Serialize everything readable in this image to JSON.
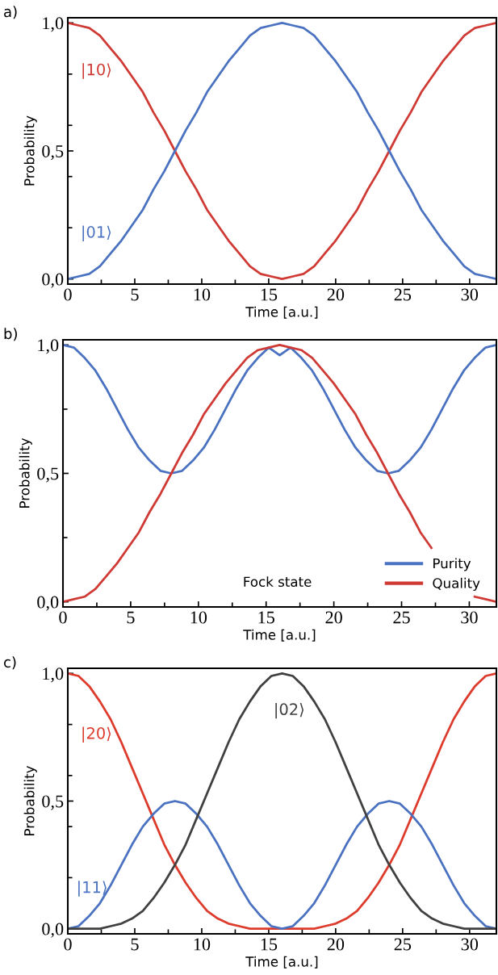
{
  "chart_data": [
    {
      "type": "line",
      "title": "a)",
      "xlabel": "Time [a.u.]",
      "ylabel": "Probability",
      "legend": false,
      "grid": false,
      "xlim": [
        0,
        32
      ],
      "ylim": [
        -0.02,
        1.02
      ],
      "xticks": [
        0,
        {
          "value": 2.5,
          "label": null
        },
        5,
        {
          "value": 7.5,
          "label": null
        },
        10,
        {
          "value": 12.5,
          "label": null
        },
        15,
        {
          "value": 17.5,
          "label": null
        },
        20,
        {
          "value": 22.5,
          "label": null
        },
        25,
        {
          "value": 27.5,
          "label": null
        },
        30
      ],
      "yticks": [
        {
          "value": 0,
          "label": "0,0"
        },
        {
          "value": 0.2,
          "label": null
        },
        {
          "value": 0.4,
          "label": null
        },
        {
          "value": 0.5,
          "label": "0,5"
        },
        {
          "value": 0.6,
          "label": null
        },
        {
          "value": 0.8,
          "label": null
        },
        {
          "value": 1,
          "label": "1,0"
        }
      ],
      "x": [
        0,
        0.8,
        1.6,
        2.4,
        3.2,
        4,
        4.8,
        5.6,
        6.4,
        7.2,
        8,
        8.8,
        9.6,
        10.4,
        11.2,
        12,
        12.8,
        13.6,
        14.4,
        15.2,
        16,
        16.8,
        17.6,
        18.4,
        19.2,
        20,
        20.8,
        21.6,
        22.4,
        23.2,
        24,
        24.8,
        25.6,
        26.4,
        27.2,
        28,
        28.8,
        29.6,
        30.4,
        31.2,
        32
      ],
      "series": [
        {
          "name": "|10⟩",
          "color": "#d03a35",
          "values": [
            1,
            0.99,
            0.98,
            0.95,
            0.9,
            0.85,
            0.79,
            0.73,
            0.65,
            0.58,
            0.5,
            0.42,
            0.35,
            0.27,
            0.21,
            0.15,
            0.1,
            0.05,
            0.02,
            0.01,
            0,
            0.01,
            0.02,
            0.05,
            0.1,
            0.15,
            0.21,
            0.27,
            0.35,
            0.42,
            0.5,
            0.58,
            0.65,
            0.73,
            0.79,
            0.85,
            0.9,
            0.95,
            0.98,
            0.99,
            1
          ]
        },
        {
          "name": "|01⟩",
          "color": "#4a72c0",
          "values": [
            0,
            0.01,
            0.02,
            0.05,
            0.1,
            0.15,
            0.21,
            0.27,
            0.35,
            0.42,
            0.5,
            0.58,
            0.65,
            0.73,
            0.79,
            0.85,
            0.9,
            0.95,
            0.98,
            0.99,
            1,
            0.99,
            0.98,
            0.95,
            0.9,
            0.85,
            0.79,
            0.73,
            0.65,
            0.58,
            0.5,
            0.42,
            0.35,
            0.27,
            0.21,
            0.15,
            0.1,
            0.05,
            0.02,
            0.01,
            0
          ]
        }
      ]
    },
    {
      "type": "line",
      "title": "b)",
      "xlabel": "Time [a.u.]",
      "ylabel": "Probability",
      "legend": "bottom right",
      "grid": false,
      "annotations": [
        "Fock state"
      ],
      "xlim": [
        0,
        32
      ],
      "ylim": [
        -0.02,
        1.02
      ],
      "xticks": [
        0,
        {
          "value": 2.5,
          "label": null
        },
        5,
        {
          "value": 7.5,
          "label": null
        },
        10,
        {
          "value": 12.5,
          "label": null
        },
        15,
        {
          "value": 17.5,
          "label": null
        },
        20,
        {
          "value": 22.5,
          "label": null
        },
        25,
        {
          "value": 27.5,
          "label": null
        },
        30
      ],
      "yticks": [
        {
          "value": 0,
          "label": "0,0"
        },
        {
          "value": 0.25,
          "label": null
        },
        {
          "value": 0.5,
          "label": "0,5"
        },
        {
          "value": 0.75,
          "label": null
        },
        {
          "value": 1,
          "label": "1,0"
        }
      ],
      "x": [
        0,
        0.8,
        1.6,
        2.4,
        3.2,
        4,
        4.8,
        5.6,
        6.4,
        7.2,
        8,
        8.8,
        9.6,
        10.4,
        11.2,
        12,
        12.8,
        13.6,
        14.4,
        15.2,
        16,
        16.8,
        17.6,
        18.4,
        19.2,
        20,
        20.8,
        21.6,
        22.4,
        23.2,
        24,
        24.8,
        25.6,
        26.4,
        27.2,
        28,
        28.8,
        29.6,
        30.4,
        31.2,
        32
      ],
      "series": [
        {
          "name": "Purity",
          "color": "#4a72c0",
          "values": [
            1,
            0.99,
            0.95,
            0.9,
            0.83,
            0.75,
            0.67,
            0.6,
            0.55,
            0.51,
            0.5,
            0.51,
            0.55,
            0.6,
            0.67,
            0.75,
            0.83,
            0.9,
            0.95,
            0.99,
            0.96,
            0.99,
            0.95,
            0.9,
            0.83,
            0.75,
            0.67,
            0.6,
            0.55,
            0.51,
            0.5,
            0.51,
            0.55,
            0.6,
            0.67,
            0.75,
            0.83,
            0.9,
            0.95,
            0.99,
            1
          ]
        },
        {
          "name": "Quality",
          "color": "#d03a35",
          "values": [
            0,
            0.01,
            0.02,
            0.05,
            0.1,
            0.15,
            0.21,
            0.27,
            0.35,
            0.42,
            0.5,
            0.58,
            0.65,
            0.73,
            0.79,
            0.85,
            0.9,
            0.95,
            0.98,
            0.99,
            1,
            0.99,
            0.98,
            0.95,
            0.9,
            0.85,
            0.79,
            0.73,
            0.65,
            0.58,
            0.5,
            0.42,
            0.35,
            0.27,
            0.21,
            null,
            null,
            null,
            0.02,
            0.01,
            0
          ]
        }
      ]
    },
    {
      "type": "line",
      "title": "c)",
      "xlabel": "Time [a.u.]",
      "ylabel": "Probability",
      "legend": false,
      "grid": false,
      "xlim": [
        0,
        32
      ],
      "ylim": [
        -0.02,
        1.02
      ],
      "xticks": [
        0,
        {
          "value": 2.5,
          "label": null
        },
        5,
        {
          "value": 7.5,
          "label": null
        },
        10,
        {
          "value": 12.5,
          "label": null
        },
        15,
        {
          "value": 17.5,
          "label": null
        },
        20,
        {
          "value": 22.5,
          "label": null
        },
        25,
        {
          "value": 27.5,
          "label": null
        },
        30
      ],
      "yticks": [
        {
          "value": 0,
          "label": "0,0"
        },
        {
          "value": 0.2,
          "label": null
        },
        {
          "value": 0.4,
          "label": null
        },
        {
          "value": 0.5,
          "label": "0,5"
        },
        {
          "value": 0.6,
          "label": null
        },
        {
          "value": 0.8,
          "label": null
        },
        {
          "value": 1,
          "label": "1,0"
        }
      ],
      "x": [
        0,
        0.8,
        1.6,
        2.4,
        3.2,
        4,
        4.8,
        5.6,
        6.4,
        7.2,
        8,
        8.8,
        9.6,
        10.4,
        11.2,
        12,
        12.8,
        13.6,
        14.4,
        15.2,
        16,
        16.8,
        17.6,
        18.4,
        19.2,
        20,
        20.8,
        21.6,
        22.4,
        23.2,
        24,
        24.8,
        25.6,
        26.4,
        27.2,
        28,
        28.8,
        29.6,
        30.4,
        31.2,
        32
      ],
      "series": [
        {
          "name": "|20⟩",
          "color": "#dd3b2c",
          "values": [
            1,
            0.99,
            0.95,
            0.89,
            0.82,
            0.73,
            0.63,
            0.53,
            0.43,
            0.33,
            0.25,
            0.18,
            0.12,
            0.07,
            0.04,
            0.02,
            0.01,
            0,
            0,
            0,
            0,
            0,
            0,
            0,
            0.01,
            0.02,
            0.04,
            0.07,
            0.12,
            0.18,
            0.25,
            0.33,
            0.43,
            0.53,
            0.63,
            0.73,
            0.82,
            0.89,
            0.95,
            0.99,
            1
          ]
        },
        {
          "name": "|11⟩",
          "color": "#4a72c0",
          "values": [
            0,
            0.01,
            0.05,
            0.1,
            0.17,
            0.25,
            0.33,
            0.4,
            0.45,
            0.49,
            0.5,
            0.49,
            0.45,
            0.4,
            0.33,
            0.25,
            0.17,
            0.1,
            0.05,
            0.01,
            0,
            0.01,
            0.05,
            0.1,
            0.17,
            0.25,
            0.33,
            0.4,
            0.45,
            0.49,
            0.5,
            0.49,
            0.45,
            0.4,
            0.33,
            0.25,
            0.17,
            0.1,
            0.05,
            0.01,
            0
          ]
        },
        {
          "name": "|02⟩",
          "color": "#404040",
          "values": [
            0,
            0,
            0,
            0,
            0.01,
            0.02,
            0.04,
            0.07,
            0.12,
            0.18,
            0.25,
            0.33,
            0.43,
            0.53,
            0.63,
            0.73,
            0.82,
            0.89,
            0.95,
            0.99,
            1,
            0.99,
            0.95,
            0.89,
            0.82,
            0.73,
            0.63,
            0.53,
            0.43,
            0.33,
            0.25,
            0.18,
            0.12,
            0.07,
            0.04,
            0.02,
            0.01,
            0,
            0,
            0,
            0
          ]
        }
      ]
    }
  ]
}
